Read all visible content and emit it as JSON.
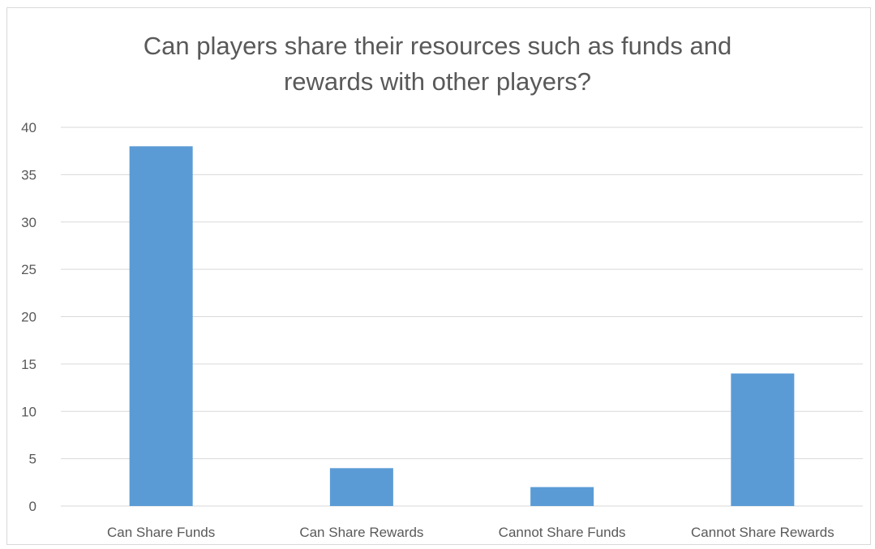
{
  "chart_data": {
    "type": "bar",
    "title": "Can players share their resources such as funds and rewards with other players?",
    "title_lines": [
      "Can players share their resources such as funds and",
      "rewards with other players?"
    ],
    "categories": [
      "Can Share Funds",
      "Can Share Rewards",
      "Cannot Share Funds",
      "Cannot Share Rewards"
    ],
    "series": [
      {
        "values": [
          38,
          4,
          2,
          14
        ]
      }
    ],
    "ylim": [
      0,
      40
    ],
    "yticks": [
      0,
      5,
      10,
      15,
      20,
      25,
      30,
      35,
      40
    ],
    "xlabel": "",
    "ylabel": "",
    "grid": true,
    "legend": "none",
    "colors": {
      "bar": "#5b9bd5",
      "grid": "#d9d9d9",
      "text": "#595959"
    }
  }
}
